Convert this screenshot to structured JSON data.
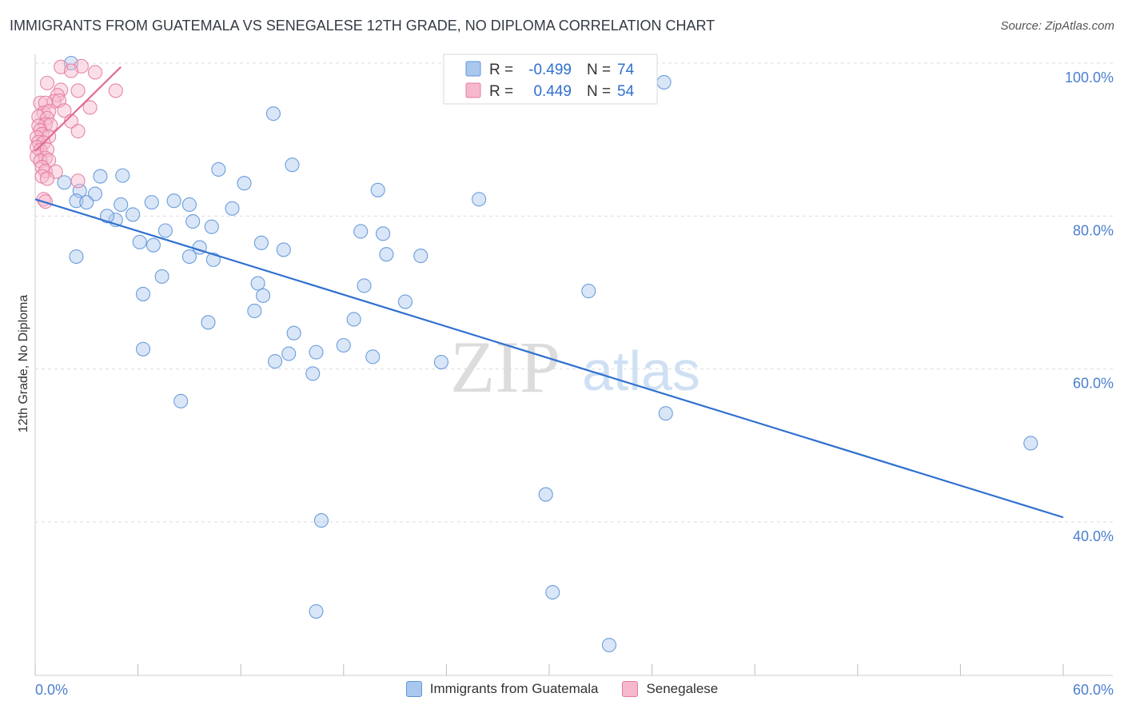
{
  "header": {
    "title": "IMMIGRANTS FROM GUATEMALA VS SENEGALESE 12TH GRADE, NO DIPLOMA CORRELATION CHART",
    "source": "Source: ZipAtlas.com"
  },
  "watermark": {
    "zip": "ZIP",
    "atlas": "atlas"
  },
  "colors": {
    "blue_fill": "#aac8ee",
    "blue_stroke": "#5d95d8",
    "blue_line": "#2f70d0",
    "pink_fill": "#f6b8cc",
    "pink_stroke": "#e47ba0",
    "pink_line": "#e06b94",
    "axis_text": "#4a7fcf",
    "grid": "#dddddd"
  },
  "chart_data": {
    "type": "scatter",
    "xlabel": "",
    "ylabel": "12th Grade, No Diploma",
    "xlim": [
      0,
      60
    ],
    "ylim": [
      20,
      101
    ],
    "x_tick_labels": [
      "0.0%",
      "60.0%"
    ],
    "y_ticks": [
      40,
      60,
      80,
      100
    ],
    "y_tick_labels": [
      "40.0%",
      "60.0%",
      "80.0%",
      "100.0%"
    ],
    "grid": true,
    "legend_stats": [
      {
        "r_label": "R =",
        "r_value": "-0.499",
        "n_label": "N =",
        "n_value": "74"
      },
      {
        "r_label": "R =",
        "r_value": "0.449",
        "n_label": "N =",
        "n_value": "54"
      }
    ],
    "series": [
      {
        "name": "Immigrants from Guatemala",
        "color": "blue",
        "trend": {
          "x": [
            0,
            60
          ],
          "y": [
            82.2,
            40.6
          ]
        },
        "points": [
          [
            2.1,
            100.0
          ],
          [
            36.7,
            97.5
          ],
          [
            13.9,
            93.4
          ],
          [
            15.0,
            86.7
          ],
          [
            10.7,
            86.1
          ],
          [
            3.8,
            85.2
          ],
          [
            5.1,
            85.3
          ],
          [
            12.2,
            84.3
          ],
          [
            20.0,
            83.4
          ],
          [
            2.6,
            83.3
          ],
          [
            3.5,
            82.9
          ],
          [
            1.7,
            84.4
          ],
          [
            2.4,
            82.0
          ],
          [
            3.0,
            81.8
          ],
          [
            5.0,
            81.5
          ],
          [
            6.8,
            81.8
          ],
          [
            8.1,
            82.0
          ],
          [
            9.0,
            81.5
          ],
          [
            11.5,
            81.0
          ],
          [
            25.9,
            82.2
          ],
          [
            4.7,
            79.5
          ],
          [
            4.2,
            80.0
          ],
          [
            5.7,
            80.2
          ],
          [
            9.2,
            79.3
          ],
          [
            10.3,
            78.6
          ],
          [
            7.6,
            78.1
          ],
          [
            19.0,
            78.0
          ],
          [
            20.3,
            77.7
          ],
          [
            6.1,
            76.6
          ],
          [
            6.9,
            76.2
          ],
          [
            13.2,
            76.5
          ],
          [
            9.6,
            75.9
          ],
          [
            14.5,
            75.6
          ],
          [
            20.5,
            75.0
          ],
          [
            22.5,
            74.8
          ],
          [
            2.4,
            74.7
          ],
          [
            9.0,
            74.7
          ],
          [
            10.4,
            74.3
          ],
          [
            7.4,
            72.1
          ],
          [
            13.0,
            71.2
          ],
          [
            19.2,
            70.9
          ],
          [
            32.3,
            70.2
          ],
          [
            6.3,
            69.8
          ],
          [
            13.3,
            69.6
          ],
          [
            21.6,
            68.8
          ],
          [
            12.8,
            67.6
          ],
          [
            18.6,
            66.5
          ],
          [
            10.1,
            66.1
          ],
          [
            15.1,
            64.7
          ],
          [
            18.0,
            63.1
          ],
          [
            6.3,
            62.6
          ],
          [
            14.8,
            62.0
          ],
          [
            16.4,
            62.2
          ],
          [
            14.0,
            61.0
          ],
          [
            19.7,
            61.6
          ],
          [
            23.7,
            60.9
          ],
          [
            16.2,
            59.4
          ],
          [
            8.5,
            55.8
          ],
          [
            36.8,
            54.2
          ],
          [
            58.1,
            50.3
          ],
          [
            29.8,
            43.6
          ],
          [
            16.7,
            40.2
          ],
          [
            30.2,
            30.8
          ],
          [
            16.4,
            28.3
          ],
          [
            33.5,
            23.9
          ]
        ]
      },
      {
        "name": "Senegalese",
        "color": "pink",
        "trend": {
          "x": [
            0,
            5.0
          ],
          "y": [
            88.5,
            99.5
          ]
        },
        "points": [
          [
            2.7,
            99.6
          ],
          [
            1.5,
            99.5
          ],
          [
            2.1,
            99.0
          ],
          [
            3.5,
            98.8
          ],
          [
            0.7,
            97.4
          ],
          [
            1.5,
            96.5
          ],
          [
            2.5,
            96.4
          ],
          [
            4.7,
            96.4
          ],
          [
            1.3,
            95.8
          ],
          [
            1.1,
            95.0
          ],
          [
            0.3,
            94.8
          ],
          [
            1.4,
            95.1
          ],
          [
            0.6,
            94.8
          ],
          [
            3.2,
            94.2
          ],
          [
            0.5,
            93.5
          ],
          [
            0.8,
            93.7
          ],
          [
            1.7,
            93.8
          ],
          [
            0.2,
            93.0
          ],
          [
            0.7,
            92.8
          ],
          [
            2.1,
            92.4
          ],
          [
            0.6,
            92.0
          ],
          [
            0.2,
            91.8
          ],
          [
            0.9,
            91.9
          ],
          [
            0.3,
            91.2
          ],
          [
            2.5,
            91.1
          ],
          [
            0.4,
            90.7
          ],
          [
            0.1,
            90.3
          ],
          [
            0.8,
            90.4
          ],
          [
            0.2,
            89.7
          ],
          [
            0.5,
            89.6
          ],
          [
            0.1,
            89.0
          ],
          [
            0.3,
            88.6
          ],
          [
            0.7,
            88.7
          ],
          [
            0.1,
            87.8
          ],
          [
            0.6,
            87.6
          ],
          [
            0.3,
            87.2
          ],
          [
            0.8,
            87.3
          ],
          [
            0.4,
            86.4
          ],
          [
            0.6,
            85.9
          ],
          [
            1.2,
            85.8
          ],
          [
            0.4,
            85.2
          ],
          [
            0.7,
            84.9
          ],
          [
            2.5,
            84.6
          ],
          [
            0.5,
            82.2
          ],
          [
            0.6,
            81.9
          ]
        ]
      }
    ]
  }
}
